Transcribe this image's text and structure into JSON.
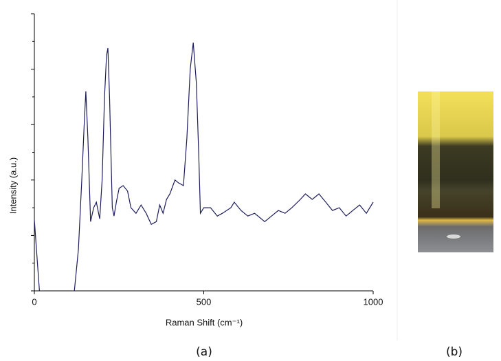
{
  "chart_data": {
    "type": "line",
    "xlabel": "Raman Shift (cm⁻¹)",
    "ylabel": "Intensity (a.u.)",
    "x": [
      0,
      8,
      15,
      60,
      118,
      130,
      140,
      147,
      152,
      158,
      166,
      175,
      183,
      193,
      200,
      207,
      213,
      217,
      222,
      230,
      235,
      242,
      250,
      262,
      275,
      285,
      300,
      315,
      330,
      345,
      360,
      370,
      380,
      390,
      400,
      415,
      425,
      440,
      450,
      460,
      469,
      478,
      485,
      490,
      500,
      520,
      540,
      555,
      580,
      590,
      610,
      630,
      650,
      680,
      700,
      720,
      740,
      760,
      785,
      800,
      820,
      840,
      860,
      880,
      900,
      920,
      940,
      960,
      980,
      1000
    ],
    "series": [
      {
        "color": "#1c1c5c",
        "values": [
          25.6,
          12,
          0,
          null,
          0,
          15,
          40,
          60,
          72,
          55,
          25,
          30,
          32,
          26,
          40,
          70,
          85,
          87.6,
          70,
          30,
          27,
          32,
          37,
          38,
          36,
          30,
          28,
          31,
          28,
          24,
          25,
          31,
          28,
          33,
          35,
          40,
          39,
          38,
          55,
          80,
          89.6,
          75,
          50,
          28,
          30,
          30,
          27,
          28,
          30,
          32,
          29,
          27,
          28,
          25,
          27,
          29,
          28,
          30,
          33,
          35,
          33,
          35,
          32,
          29,
          30,
          27,
          29,
          31,
          28,
          32
        ]
      }
    ],
    "xlim": [
      0,
      1000
    ],
    "xticks": [
      0,
      500,
      1000
    ],
    "ylim": [
      0,
      100
    ],
    "yticks": [
      0,
      20,
      40,
      60,
      80,
      100
    ],
    "captions": [
      "(a)",
      "(b)"
    ]
  }
}
